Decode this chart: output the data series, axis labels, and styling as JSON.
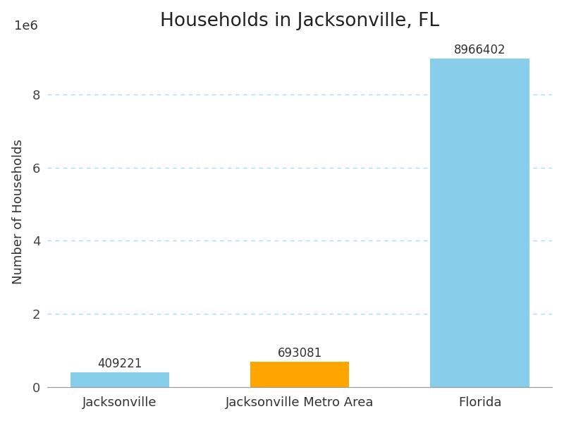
{
  "categories": [
    "Jacksonville",
    "Jacksonville Metro Area",
    "Florida"
  ],
  "values": [
    409221,
    693081,
    8966402
  ],
  "bar_colors": [
    "#87CEEB",
    "#FFA500",
    "#87CEEB"
  ],
  "title": "Households in Jacksonville, FL",
  "ylabel": "Number of Households",
  "ylim": [
    0,
    9600000
  ],
  "yticks": [
    0,
    2000000,
    4000000,
    6000000,
    8000000
  ],
  "title_fontsize": 19,
  "label_fontsize": 13,
  "tick_fontsize": 13,
  "annotation_fontsize": 12,
  "background_color": "#ffffff",
  "grid_color": "#aaddee",
  "bar_width": 0.55
}
